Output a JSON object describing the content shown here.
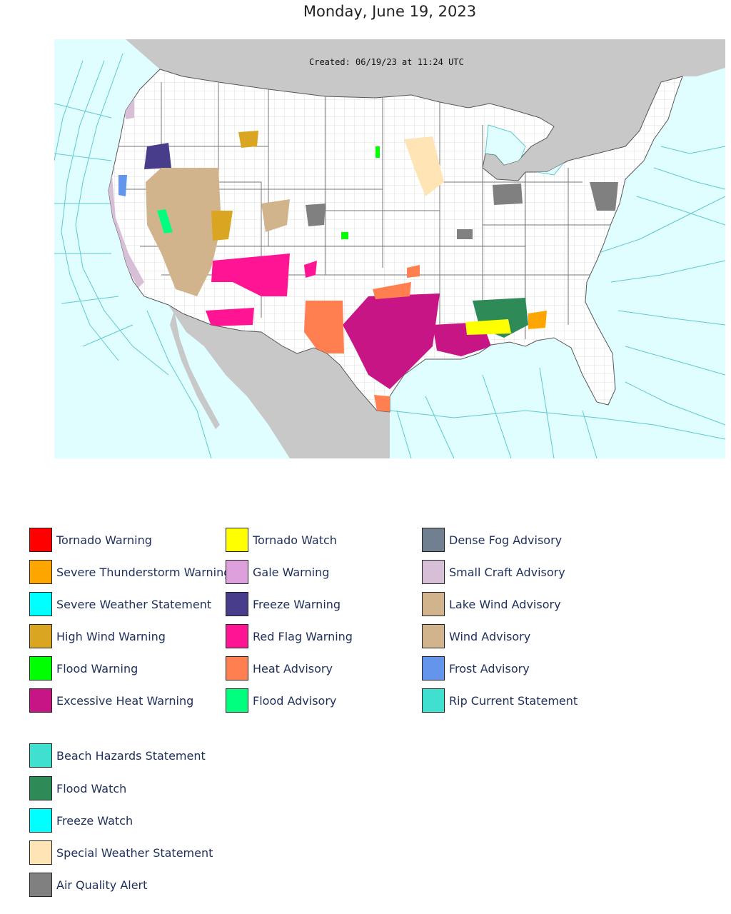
{
  "page": {
    "title": "Monday, June 19, 2023"
  },
  "map": {
    "created_stamp": "Created: 06/19/23 at 11:24 UTC",
    "colors": {
      "ocean": "#e0fdff",
      "foreign_land": "#c8c8c8",
      "us_land": "#ffffff",
      "county_lines": "#b0b0b0",
      "marine_zones": "#5fc9cf"
    }
  },
  "legend": {
    "columns": [
      [
        {
          "label": "Tornado Warning",
          "color": "#ff0000"
        },
        {
          "label": "Severe Thunderstorm Warning",
          "color": "#ffa500"
        },
        {
          "label": "Severe Weather Statement",
          "color": "#00ffff"
        },
        {
          "label": "High Wind Warning",
          "color": "#daa520"
        },
        {
          "label": "Flood Warning",
          "color": "#00ff00"
        },
        {
          "label": "Excessive Heat Warning",
          "color": "#c71585"
        }
      ],
      [
        {
          "label": "Tornado Watch",
          "color": "#ffff00"
        },
        {
          "label": "Gale Warning",
          "color": "#dda0dd"
        },
        {
          "label": "Freeze Warning",
          "color": "#483d8b"
        },
        {
          "label": "Red Flag Warning",
          "color": "#ff1493"
        },
        {
          "label": "Heat Advisory",
          "color": "#ff7f50"
        },
        {
          "label": "Flood Advisory",
          "color": "#00ff7f"
        }
      ],
      [
        {
          "label": "Dense Fog Advisory",
          "color": "#708090"
        },
        {
          "label": "Small Craft Advisory",
          "color": "#d8bfd8"
        },
        {
          "label": "Lake Wind Advisory",
          "color": "#d2b48c"
        },
        {
          "label": "Wind Advisory",
          "color": "#d2b48c"
        },
        {
          "label": "Frost Advisory",
          "color": "#6495ed"
        },
        {
          "label": "Rip Current Statement",
          "color": "#40e0d0"
        }
      ]
    ],
    "extra": [
      {
        "label": "Beach Hazards Statement",
        "color": "#40e0d0"
      },
      {
        "label": "Flood Watch",
        "color": "#2e8b57"
      },
      {
        "label": "Freeze Watch",
        "color": "#00ffff"
      },
      {
        "label": "Special Weather Statement",
        "color": "#ffe4b5"
      },
      {
        "label": "Air Quality Alert",
        "color": "#808080"
      }
    ]
  }
}
